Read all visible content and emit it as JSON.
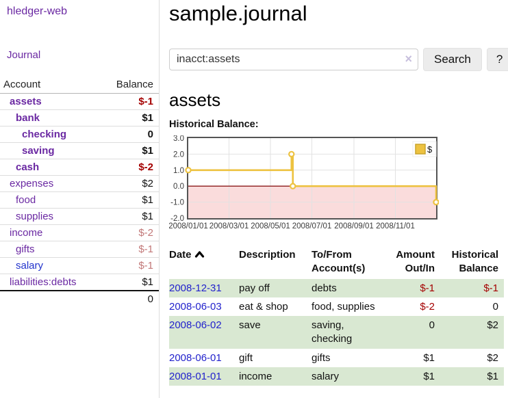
{
  "sidebar": {
    "app_title": "hledger-web",
    "nav": {
      "journal": "Journal"
    },
    "accounts_table": {
      "headers": [
        "Account",
        "Balance"
      ],
      "rows": [
        {
          "name": "assets",
          "level": 1,
          "bold": true,
          "link_color": "purple",
          "balance": "$-1",
          "balance_tone": "negative"
        },
        {
          "name": "bank",
          "level": 2,
          "bold": true,
          "link_color": "purple",
          "balance": "$1",
          "balance_tone": "normal"
        },
        {
          "name": "checking",
          "level": 3,
          "bold": true,
          "link_color": "purple",
          "balance": "0",
          "balance_tone": "normal"
        },
        {
          "name": "saving",
          "level": 3,
          "bold": true,
          "link_color": "purple",
          "balance": "$1",
          "balance_tone": "normal"
        },
        {
          "name": "cash",
          "level": 2,
          "bold": true,
          "link_color": "purple",
          "balance": "$-2",
          "balance_tone": "negative"
        },
        {
          "name": "expenses",
          "level": 1,
          "bold": false,
          "link_color": "purple",
          "balance": "$2",
          "balance_tone": "normal"
        },
        {
          "name": "food",
          "level": 2,
          "bold": false,
          "link_color": "purple",
          "balance": "$1",
          "balance_tone": "normal"
        },
        {
          "name": "supplies",
          "level": 2,
          "bold": false,
          "link_color": "purple",
          "balance": "$1",
          "balance_tone": "normal"
        },
        {
          "name": "income",
          "level": 1,
          "bold": false,
          "link_color": "purple",
          "balance": "$-2",
          "balance_tone": "muted-negative"
        },
        {
          "name": "gifts",
          "level": 2,
          "bold": false,
          "link_color": "purple",
          "balance": "$-1",
          "balance_tone": "muted-negative"
        },
        {
          "name": "salary",
          "level": 2,
          "bold": false,
          "link_color": "blue",
          "balance": "$-1",
          "balance_tone": "muted-negative"
        },
        {
          "name": "liabilities:debts",
          "level": 1,
          "bold": false,
          "link_color": "purple",
          "balance": "$1",
          "balance_tone": "normal"
        }
      ],
      "total": "0"
    }
  },
  "header": {
    "title": "sample.journal"
  },
  "search": {
    "query": "inacct:assets",
    "clear_icon": "×",
    "search_label": "Search",
    "help_label": "?"
  },
  "account_page": {
    "title": "assets",
    "chart_label": "Historical Balance:"
  },
  "chart_data": {
    "type": "line",
    "title": "Historical Balance",
    "step": true,
    "legend": "$",
    "legend_position": "top-right",
    "grid": true,
    "x_range_days": [
      0,
      365
    ],
    "ylim": [
      -2,
      3
    ],
    "y_ticks": [
      3.0,
      2.0,
      1.0,
      0.0,
      -1.0,
      -2.0
    ],
    "x_ticks": [
      {
        "label": "2008/01/01",
        "day": 0
      },
      {
        "label": "2008/03/01",
        "day": 60
      },
      {
        "label": "2008/05/01",
        "day": 121
      },
      {
        "label": "2008/07/01",
        "day": 182
      },
      {
        "label": "2008/09/01",
        "day": 244
      },
      {
        "label": "2008/11/01",
        "day": 305
      }
    ],
    "series": [
      {
        "name": "$",
        "color": "#edc240",
        "points": [
          {
            "date": "2008-01-01",
            "day": 0,
            "value": 1
          },
          {
            "date": "2008-06-01",
            "day": 152,
            "value": 2
          },
          {
            "date": "2008-06-03",
            "day": 154,
            "value": 0
          },
          {
            "date": "2008-12-31",
            "day": 365,
            "value": -1
          }
        ]
      }
    ],
    "negative_region_color": "#fadcdc",
    "zero_line_color": "#8b1a1a",
    "grid_color": "#e2e2e2",
    "border_color": "#545454"
  },
  "register_table": {
    "headers": {
      "date": "Date",
      "description": "Description",
      "accounts": "To/From Account(s)",
      "amount": "Amount Out/In",
      "balance": "Historical Balance"
    },
    "sort_icon": "chevron-up",
    "rows": [
      {
        "date": "2008-12-31",
        "description": "pay off",
        "accounts": "debts",
        "amount": "$-1",
        "amount_tone": "negative",
        "balance": "$-1",
        "balance_tone": "negative"
      },
      {
        "date": "2008-06-03",
        "description": "eat & shop",
        "accounts": "food, supplies",
        "amount": "$-2",
        "amount_tone": "negative",
        "balance": "0",
        "balance_tone": "normal"
      },
      {
        "date": "2008-06-02",
        "description": "save",
        "accounts": "saving, checking",
        "amount": "0",
        "amount_tone": "normal",
        "balance": "$2",
        "balance_tone": "normal"
      },
      {
        "date": "2008-06-01",
        "description": "gift",
        "accounts": "gifts",
        "amount": "$1",
        "amount_tone": "normal",
        "balance": "$2",
        "balance_tone": "normal"
      },
      {
        "date": "2008-01-01",
        "description": "income",
        "accounts": "salary",
        "amount": "$1",
        "amount_tone": "normal",
        "balance": "$1",
        "balance_tone": "normal"
      }
    ]
  },
  "colors": {
    "accent_purple": "#6a28a2",
    "link_blue": "#2222cc",
    "negative_red": "#a40000",
    "muted_negative_rose": "#c27878",
    "row_stripe_green": "#d9e8d2",
    "chart_line_gold": "#edc240"
  }
}
